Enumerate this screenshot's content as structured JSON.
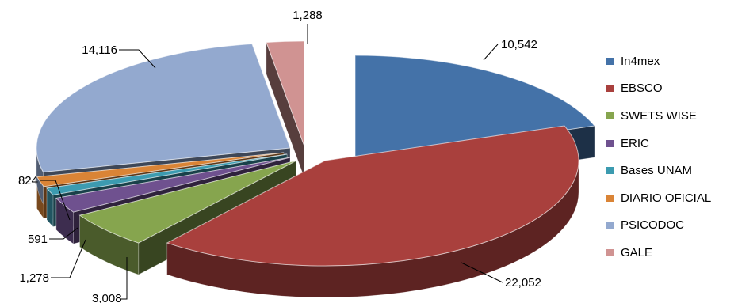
{
  "chart_data": {
    "type": "pie",
    "title": "",
    "style": "3d-exploded",
    "legend_position": "right",
    "series": [
      {
        "name": "In4mex",
        "value": 10542,
        "label": "10,542",
        "color": "#4472A8"
      },
      {
        "name": "EBSCO",
        "value": 22052,
        "label": "22,052",
        "color": "#A9403D"
      },
      {
        "name": "SWETS WISE",
        "value": 3008,
        "label": "3,008",
        "color": "#86A54E"
      },
      {
        "name": "ERIC",
        "value": 1278,
        "label": "1,278",
        "color": "#6F518F"
      },
      {
        "name": "Bases UNAM",
        "value": 591,
        "label": "591",
        "color": "#3C9BB0"
      },
      {
        "name": "DIARIO OFICIAL",
        "value": 824,
        "label": "824",
        "color": "#DA8436"
      },
      {
        "name": "PSICODOC",
        "value": 14116,
        "label": "14,116",
        "color": "#93A9CF"
      },
      {
        "name": "GALE",
        "value": 1288,
        "label": "1,288",
        "color": "#D09392"
      }
    ]
  }
}
